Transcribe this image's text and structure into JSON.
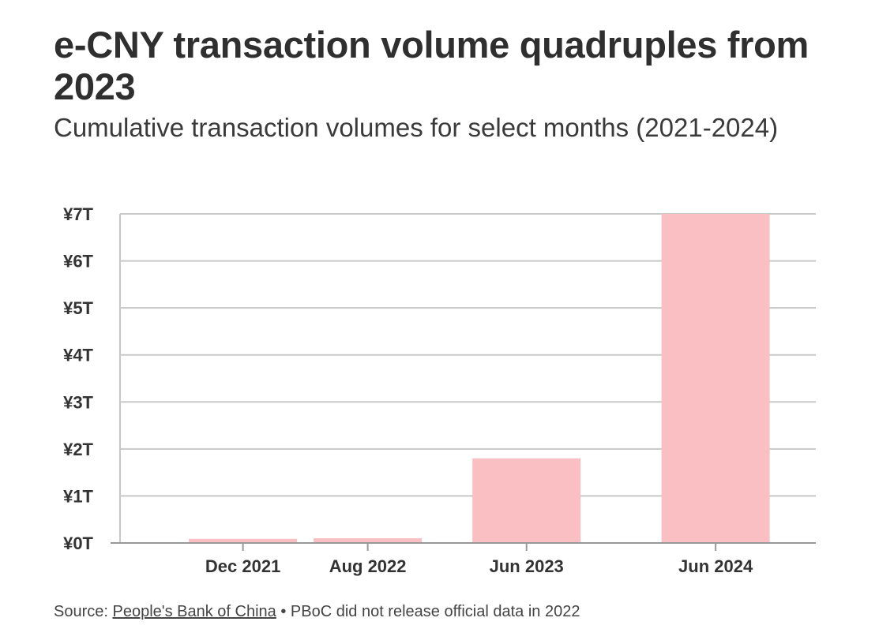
{
  "title": "e-CNY transaction volume quadruples from 2023",
  "subtitle": "Cumulative transaction volumes for select months (2021-2024)",
  "source": {
    "prefix": "Source: ",
    "link_text": "People's Bank of China",
    "note": " • PBoC did not release official data in 2022"
  },
  "colors": {
    "bar": "#f9bfc3",
    "grid": "#c8c8c8",
    "axis": "#999999",
    "text": "#333333"
  },
  "chart_data": {
    "type": "bar",
    "title": "e-CNY transaction volume quadruples from 2023",
    "subtitle": "Cumulative transaction volumes for select months (2021-2024)",
    "xlabel": "",
    "ylabel": "",
    "unit": "trillion yuan",
    "categories": [
      "Dec 2021",
      "Aug 2022",
      "Jun 2023",
      "Jun 2024"
    ],
    "x": [
      2021.92,
      2022.58,
      2023.42,
      2024.42
    ],
    "values": [
      0.088,
      0.1,
      1.8,
      7.0
    ],
    "ylim": [
      0,
      7
    ],
    "yticks": [
      0,
      1,
      2,
      3,
      4,
      5,
      6,
      7
    ],
    "ytick_labels": [
      "¥0T",
      "¥1T",
      "¥2T",
      "¥3T",
      "¥4T",
      "¥5T",
      "¥6T",
      "¥7T"
    ],
    "grid": true,
    "legend": "none"
  }
}
